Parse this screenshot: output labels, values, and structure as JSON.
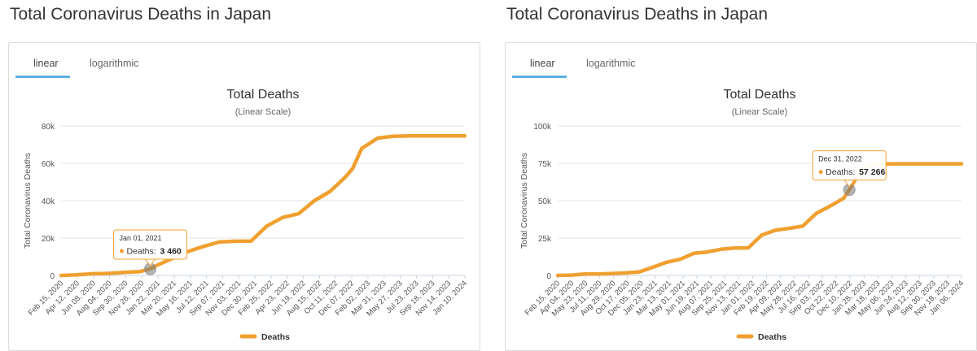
{
  "page": {
    "title": "Total Coronavirus Deaths in Japan"
  },
  "tabs": [
    "linear",
    "logarithmic"
  ],
  "accent_color": "#f0a030",
  "tab_underline_color": "#5bb1e4",
  "chart_data": [
    {
      "type": "line",
      "title": "Total Deaths",
      "subtitle": "(Linear Scale)",
      "ylabel": "Total Coronavirus Deaths",
      "xlabel": "",
      "ylim": [
        0,
        80000
      ],
      "y_ticks": [
        0,
        20000,
        40000,
        60000,
        80000
      ],
      "y_tick_labels": [
        "0",
        "20k",
        "40k",
        "60k",
        "80k"
      ],
      "x_tick_labels": [
        "Feb 15, 2020",
        "Apr 12, 2020",
        "Jun 08, 2020",
        "Aug 04, 2020",
        "Sep 30, 2020",
        "Nov 26, 2020",
        "Jan 22, 2021",
        "Mar 20, 2021",
        "May 16, 2021",
        "Jul 12, 2021",
        "Sep 07, 2021",
        "Nov 03, 2021",
        "Dec 30, 2021",
        "Feb 25, 2022",
        "Apr 23, 2022",
        "Jun 19, 2022",
        "Aug 15, 2022",
        "Oct 11, 2022",
        "Dec 07, 2022",
        "Feb 02, 2023",
        "Mar 31, 2023",
        "May 27, 2023",
        "Jul 23, 2023",
        "Sep 18, 2023",
        "Nov 14, 2023",
        "Jan 10, 2024"
      ],
      "x": [
        "2020-02-15",
        "2020-04-12",
        "2020-06-08",
        "2020-08-04",
        "2020-09-30",
        "2020-11-26",
        "2021-01-01",
        "2021-01-22",
        "2021-03-20",
        "2021-05-16",
        "2021-07-12",
        "2021-09-07",
        "2021-11-03",
        "2021-12-30",
        "2022-02-25",
        "2022-04-23",
        "2022-06-19",
        "2022-08-15",
        "2022-10-11",
        "2022-12-07",
        "2022-12-31",
        "2023-02-02",
        "2023-03-31",
        "2023-05-27",
        "2023-07-23",
        "2023-09-18",
        "2023-11-14",
        "2024-01-10",
        "2024-02-08"
      ],
      "series": [
        {
          "name": "Deaths",
          "values": [
            0,
            300,
            900,
            1100,
            1600,
            2100,
            3460,
            5200,
            9000,
            12800,
            15500,
            17900,
            18300,
            18400,
            26500,
            31000,
            33000,
            40000,
            45000,
            53000,
            57266,
            68000,
            73500,
            74500,
            74700,
            74700,
            74700,
            74700,
            74700
          ]
        }
      ],
      "legend": {
        "position": "bottom-center",
        "entries": [
          "Deaths"
        ]
      },
      "tooltip": {
        "date": "Jan 01, 2021",
        "label": "Deaths:",
        "value": "3 460",
        "x": "2021-01-01"
      },
      "grid": true
    },
    {
      "type": "line",
      "title": "Total Deaths",
      "subtitle": "(Linear Scale)",
      "ylabel": "Total Coronavirus Deaths",
      "xlabel": "",
      "ylim": [
        0,
        100000
      ],
      "y_ticks": [
        0,
        25000,
        50000,
        75000,
        100000
      ],
      "y_tick_labels": [
        "0",
        "25k",
        "50k",
        "75k",
        "100k"
      ],
      "x_tick_labels": [
        "Feb 15, 2020",
        "Apr 04, 2020",
        "May 23, 2020",
        "Jul 11, 2020",
        "Aug 29, 2020",
        "Oct 17, 2020",
        "Dec 05, 2020",
        "Jan 23, 2021",
        "Mar 13, 2021",
        "May 01, 2021",
        "Jun 19, 2021",
        "Aug 07, 2021",
        "Sep 25, 2021",
        "Nov 13, 2021",
        "Jan 01, 2022",
        "Feb 19, 2022",
        "Apr 09, 2022",
        "May 28, 2022",
        "Jul 16, 2022",
        "Sep 03, 2022",
        "Oct 22, 2022",
        "Dec 10, 2022",
        "Jan 28, 2023",
        "Mar 18, 2023",
        "May 06, 2023",
        "Jun 24, 2023",
        "Aug 12, 2023",
        "Sep 30, 2023",
        "Nov 18, 2023",
        "Jan 06, 2024"
      ],
      "x": [
        "2020-02-15",
        "2020-04-04",
        "2020-05-23",
        "2020-07-11",
        "2020-08-29",
        "2020-10-17",
        "2020-12-05",
        "2021-01-23",
        "2021-03-13",
        "2021-05-01",
        "2021-06-19",
        "2021-08-07",
        "2021-09-25",
        "2021-11-13",
        "2022-01-01",
        "2022-02-19",
        "2022-04-09",
        "2022-05-28",
        "2022-07-16",
        "2022-09-03",
        "2022-10-22",
        "2022-12-10",
        "2022-12-31",
        "2023-01-28",
        "2023-03-18",
        "2023-05-06",
        "2023-06-24",
        "2023-08-12",
        "2023-09-30",
        "2023-11-18",
        "2024-01-06",
        "2024-02-08"
      ],
      "series": [
        {
          "name": "Deaths",
          "values": [
            0,
            200,
            900,
            1000,
            1300,
            1700,
            2400,
            5500,
            8800,
            10800,
            14800,
            15700,
            17500,
            18300,
            18400,
            27000,
            30200,
            31500,
            33000,
            41500,
            46300,
            51500,
            57266,
            66000,
            73800,
            74600,
            74700,
            74700,
            74700,
            74700,
            74700,
            74700
          ]
        }
      ],
      "legend": {
        "position": "bottom-center",
        "entries": [
          "Deaths"
        ]
      },
      "tooltip": {
        "date": "Dec 31, 2022",
        "label": "Deaths:",
        "value": "57 266",
        "x": "2022-12-31"
      },
      "grid": true
    }
  ]
}
